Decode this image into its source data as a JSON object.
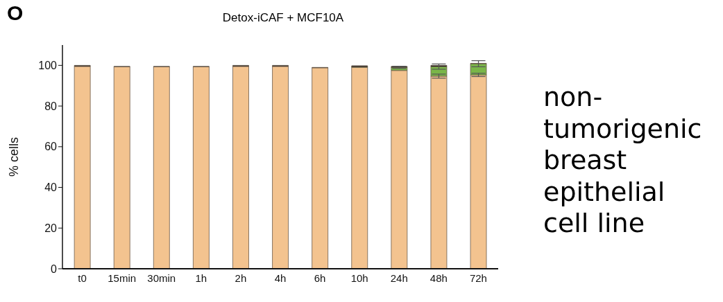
{
  "chart_data": {
    "type": "bar",
    "title": "Detox-iCAF + MCF10A",
    "ylabel": "% cells",
    "categories": [
      "t0",
      "15min",
      "30min",
      "1h",
      "2h",
      "4h",
      "6h",
      "10h",
      "24h",
      "48h",
      "72h"
    ],
    "stacked": true,
    "series": [
      {
        "color": "#f3c38f",
        "values": [
          99.5,
          99.3,
          99.3,
          99.3,
          99.5,
          99.5,
          98.8,
          99,
          97.5,
          94.7,
          95.3
        ],
        "errors": [
          null,
          null,
          null,
          null,
          null,
          null,
          null,
          null,
          null,
          1,
          0.8
        ]
      },
      {
        "color": "#7ab648",
        "values": [
          0,
          0,
          0,
          0,
          0,
          0,
          0,
          0.3,
          1.5,
          4.7,
          5.5
        ],
        "errors": [
          null,
          null,
          null,
          null,
          null,
          null,
          null,
          null,
          0.5,
          1.3,
          1.5
        ]
      },
      {
        "color": "#111111",
        "values": [
          0.5,
          0.2,
          0.2,
          0.2,
          0.5,
          0.5,
          0.2,
          0.5,
          0.5,
          0.6,
          0.2
        ]
      }
    ],
    "ylim": [
      0,
      110
    ],
    "yticks": [
      0,
      20,
      40,
      60,
      80,
      100
    ],
    "grid": false,
    "legend": false,
    "annotations": [
      "O",
      "non-tumorigenic breast epithelial cell line"
    ]
  }
}
